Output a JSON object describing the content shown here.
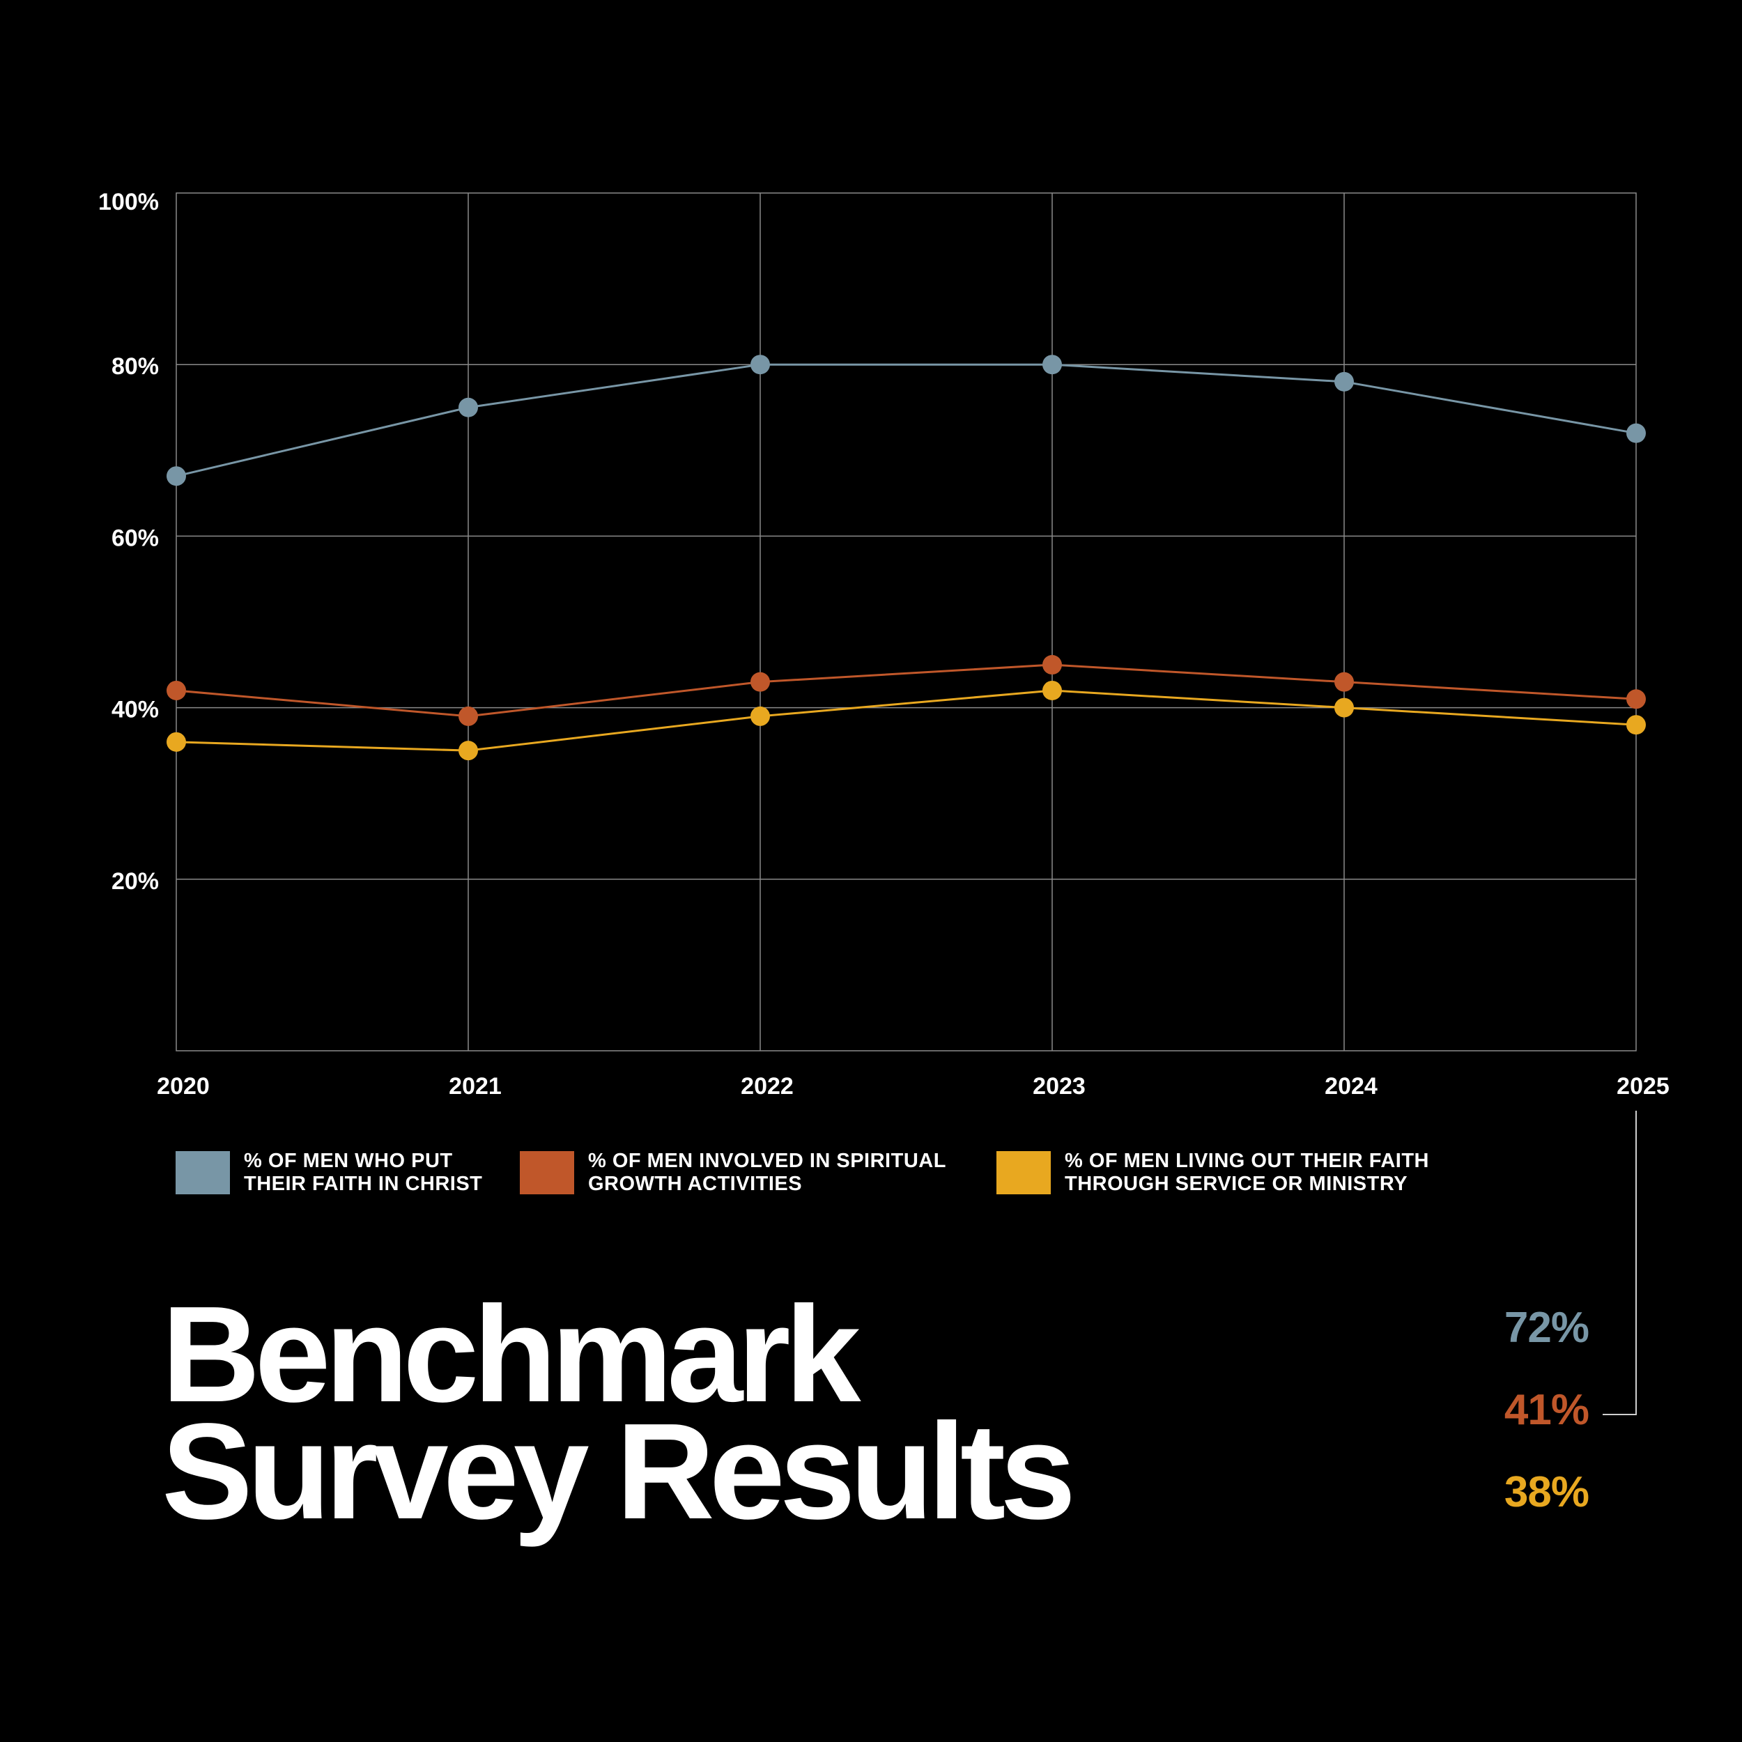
{
  "chart_data": {
    "type": "line",
    "title": "Benchmark Survey Results",
    "xlabel": "",
    "ylabel": "",
    "categories": [
      "2020",
      "2021",
      "2022",
      "2023",
      "2024",
      "2025"
    ],
    "ylim": [
      0,
      100
    ],
    "yticks": [
      20,
      40,
      60,
      80,
      100
    ],
    "ytick_labels": [
      "20%",
      "40%",
      "60%",
      "80%",
      "100%"
    ],
    "grid": true,
    "legend_position": "bottom",
    "series": [
      {
        "name": "% OF MEN WHO PUT\nTHEIR FAITH IN CHRIST",
        "color": "#7896a6",
        "values": [
          67,
          75,
          80,
          80,
          78,
          72
        ]
      },
      {
        "name": "% OF MEN INVOLVED IN SPIRITUAL\nGROWTH ACTIVITIES",
        "color": "#c0572a",
        "values": [
          42,
          39,
          43,
          45,
          43,
          41
        ]
      },
      {
        "name": "% OF MEN LIVING OUT THEIR FAITH\nTHROUGH SERVICE OR MINISTRY",
        "color": "#e8a820",
        "values": [
          36,
          35,
          39,
          42,
          40,
          38
        ]
      }
    ]
  },
  "title": {
    "line1": "Benchmark",
    "line2": "Survey Results"
  },
  "final_values": [
    {
      "label": "72%",
      "color": "#7896a6"
    },
    {
      "label": "41%",
      "color": "#c0572a"
    },
    {
      "label": "38%",
      "color": "#e8a820"
    }
  ],
  "colors": {
    "background": "#000000",
    "grid": "#8a8a8a"
  }
}
